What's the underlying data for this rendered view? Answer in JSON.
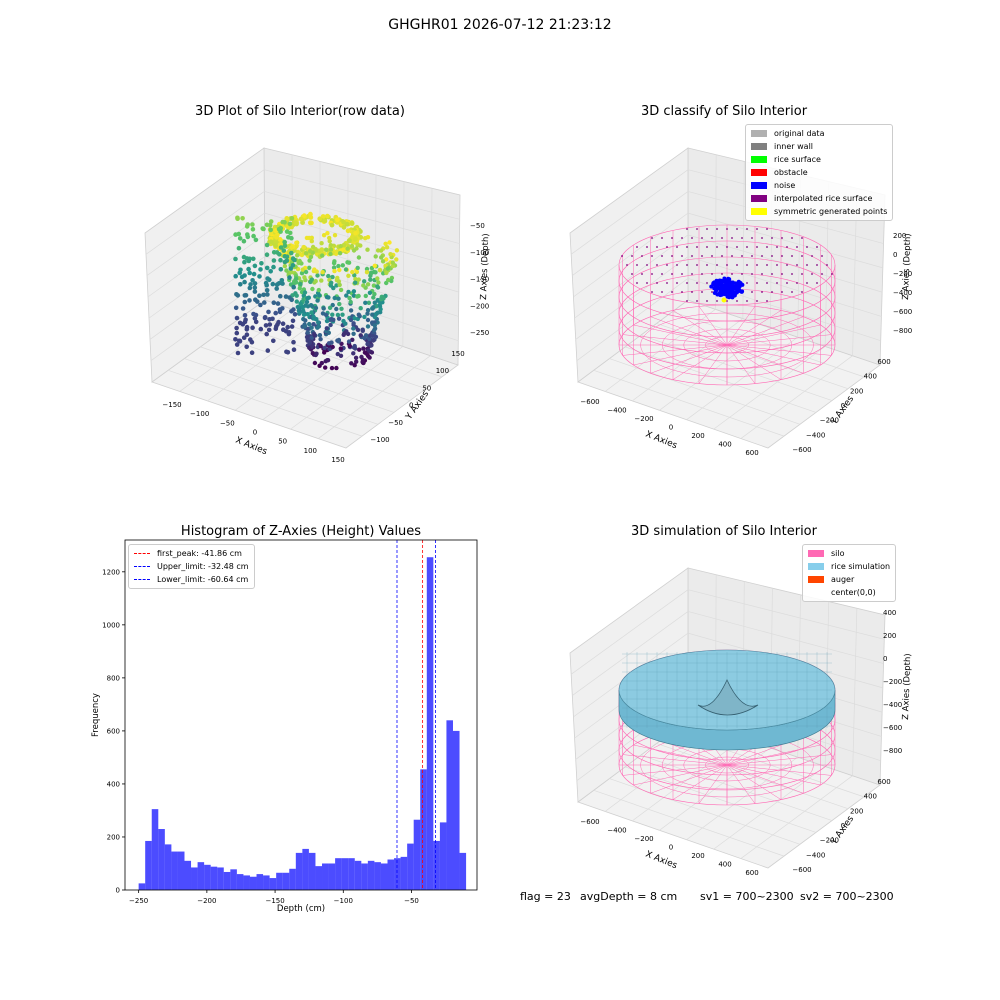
{
  "figure": {
    "suptitle": "GHGHR01 2026-07-12 21:23:12"
  },
  "panel_raw": {
    "title": "3D Plot of Silo Interior(row data)",
    "xlabel": "X Axies",
    "ylabel": "Y Axies",
    "zlabel": "Z Axies (Depth)",
    "xticks": [
      "−150",
      "−100",
      "−50",
      "0",
      "50",
      "100",
      "150"
    ],
    "yticks": [
      "−100",
      "−50",
      "0",
      "50",
      "100",
      "150"
    ],
    "zticks": [
      "−50",
      "−100",
      "−150",
      "−200",
      "−250"
    ],
    "colormap": "viridis"
  },
  "panel_classify": {
    "title": "3D classify of Silo Interior",
    "xlabel": "X Axies",
    "ylabel": "Y Axies",
    "zlabel": "Z Axies (Depth)",
    "xticks": [
      "−600",
      "−400",
      "−200",
      "0",
      "200",
      "400",
      "600"
    ],
    "yticks": [
      "−600",
      "−400",
      "−200",
      "0",
      "200",
      "400",
      "600"
    ],
    "zticks": [
      "200",
      "0",
      "−200",
      "−400",
      "−600",
      "−800"
    ],
    "legend": [
      {
        "label": "original data",
        "color": "#b0b0b0"
      },
      {
        "label": "inner wall",
        "color": "#808080"
      },
      {
        "label": "rice surface",
        "color": "#00ff00"
      },
      {
        "label": "obstacle",
        "color": "#ff0000"
      },
      {
        "label": "noise",
        "color": "#0000ff"
      },
      {
        "label": "interpolated rice surface",
        "color": "#800080"
      },
      {
        "label": "symmetric generated points",
        "color": "#ffff00"
      }
    ],
    "wire_color": "#ff69b4"
  },
  "panel_sim": {
    "title": "3D simulation of Silo Interior",
    "xlabel": "X Axies",
    "ylabel": "Y Axies",
    "zlabel": "Z Axies (Depth)",
    "xticks": [
      "−600",
      "−400",
      "−200",
      "0",
      "200",
      "400",
      "600"
    ],
    "yticks": [
      "−600",
      "−400",
      "−200",
      "0",
      "200",
      "400",
      "600"
    ],
    "zticks": [
      "400",
      "200",
      "0",
      "−200",
      "−400",
      "−600",
      "−800"
    ],
    "legend": [
      {
        "label": "silo",
        "color": "#ff69b4"
      },
      {
        "label": "rice simulation",
        "color": "#87ceeb"
      },
      {
        "label": "auger",
        "color": "#ff4500"
      },
      {
        "label": "center(0,0)",
        "color": "#ffffff"
      }
    ]
  },
  "status": {
    "flag": "flag = 23",
    "avg_depth": "avgDepth = 8 cm",
    "sv1": "sv1 = 700~2300",
    "sv2": "sv2 = 700~2300"
  },
  "chart_data": {
    "type": "bar",
    "title": "Histogram of Z-Axies (Height) Values",
    "xlabel": "Depth (cm)",
    "ylabel": "Frequency",
    "xlim": [
      -260,
      -2
    ],
    "ylim": [
      0,
      1320
    ],
    "xticks": [
      -250,
      -200,
      -150,
      -100,
      -50
    ],
    "xtick_labels": [
      "−250",
      "−200",
      "−150",
      "−100",
      "−50"
    ],
    "yticks": [
      0,
      200,
      400,
      600,
      800,
      1000,
      1200
    ],
    "bin_start": -250,
    "bin_width": 4.8,
    "values": [
      25,
      185,
      305,
      230,
      172,
      145,
      145,
      110,
      85,
      105,
      95,
      88,
      85,
      68,
      78,
      60,
      55,
      50,
      60,
      55,
      45,
      65,
      65,
      80,
      140,
      155,
      140,
      90,
      100,
      100,
      120,
      120,
      120,
      110,
      100,
      110,
      105,
      100,
      115,
      120,
      125,
      175,
      265,
      455,
      1255,
      185,
      255,
      640,
      600,
      140
    ],
    "bar_color": "#0000ff",
    "vlines": [
      {
        "x": -41.86,
        "label": "first_peak: -41.86 cm",
        "color": "#ff0000"
      },
      {
        "x": -32.48,
        "label": "Upper_limit: -32.48 cm",
        "color": "#0000ff"
      },
      {
        "x": -60.64,
        "label": "Lower_limit: -60.64 cm",
        "color": "#0000ff"
      }
    ],
    "grid": false,
    "legend_position": "upper-left"
  }
}
